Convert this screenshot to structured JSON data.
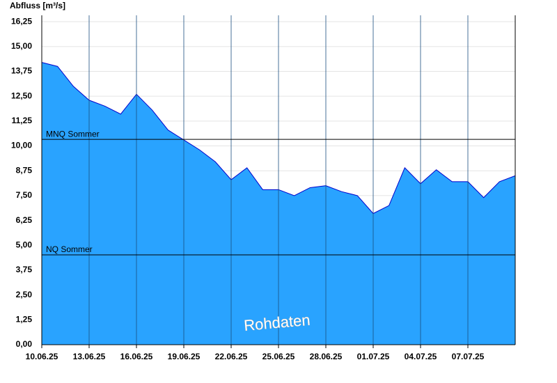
{
  "chart_data": {
    "type": "area",
    "title": "Abfluss [m³/s]",
    "annotation": "Rohdaten",
    "x": [
      "10.06.25",
      "11.06.25",
      "12.06.25",
      "13.06.25",
      "14.06.25",
      "15.06.25",
      "16.06.25",
      "17.06.25",
      "18.06.25",
      "19.06.25",
      "20.06.25",
      "21.06.25",
      "22.06.25",
      "23.06.25",
      "24.06.25",
      "25.06.25",
      "26.06.25",
      "27.06.25",
      "28.06.25",
      "29.06.25",
      "30.06.25",
      "01.07.25",
      "02.07.25",
      "03.07.25",
      "04.07.25",
      "05.07.25",
      "06.07.25",
      "07.07.25",
      "08.07.25",
      "09.07.25",
      "10.07.25"
    ],
    "series": [
      {
        "name": "Abfluss",
        "color": "#29a3ff",
        "line_color": "#0000cc",
        "values": [
          14.2,
          14.0,
          13.0,
          12.3,
          12.0,
          11.6,
          12.6,
          11.8,
          10.8,
          10.3,
          9.8,
          9.2,
          8.3,
          8.9,
          7.8,
          7.8,
          7.5,
          7.9,
          8.0,
          7.7,
          7.5,
          6.6,
          7.0,
          8.9,
          8.1,
          8.8,
          8.2,
          8.2,
          7.4,
          8.2,
          8.5
        ]
      }
    ],
    "thresholds": [
      {
        "label": "MNQ Sommer",
        "value": 10.33
      },
      {
        "label": "NQ Sommer",
        "value": 4.52
      }
    ],
    "xlim": [
      "10.06.25",
      "10.07.25"
    ],
    "xticks": [
      "10.06.25",
      "13.06.25",
      "16.06.25",
      "19.06.25",
      "22.06.25",
      "25.06.25",
      "28.06.25",
      "01.07.25",
      "04.07.25",
      "07.07.25"
    ],
    "ylim": [
      0,
      16.57
    ],
    "yticks": [
      {
        "value": 0,
        "label": "0,00"
      },
      {
        "value": 1.25,
        "label": "1,25"
      },
      {
        "value": 2.5,
        "label": "2,50"
      },
      {
        "value": 3.75,
        "label": "3,75"
      },
      {
        "value": 5,
        "label": "5,00"
      },
      {
        "value": 6.25,
        "label": "6,25"
      },
      {
        "value": 7.5,
        "label": "7,50"
      },
      {
        "value": 8.75,
        "label": "8,75"
      },
      {
        "value": 10,
        "label": "10,00"
      },
      {
        "value": 11.25,
        "label": "11,25"
      },
      {
        "value": 12.5,
        "label": "12,50"
      },
      {
        "value": 13.75,
        "label": "13,75"
      },
      {
        "value": 15,
        "label": "15,00"
      },
      {
        "value": 16.25,
        "label": "16,25"
      }
    ],
    "grid": true
  }
}
